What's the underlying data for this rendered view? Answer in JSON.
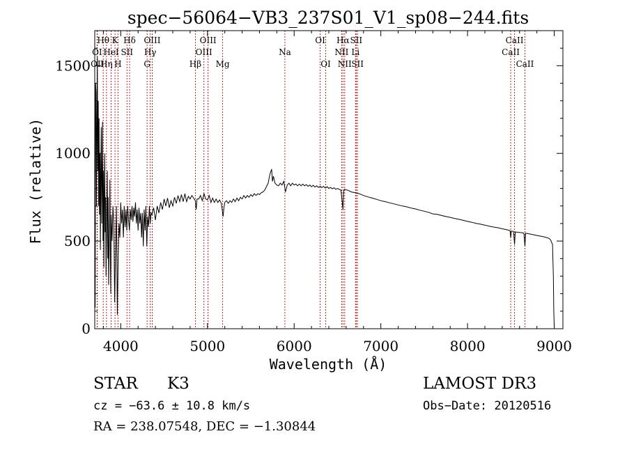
{
  "chart_data": {
    "type": "line",
    "title": "spec−56064−VB3_237S01_V1_sp08−244.fits",
    "xlabel": "Wavelength (Å)",
    "ylabel": "Flux (relative)",
    "xlim": [
      3700,
      9100
    ],
    "ylim": [
      0,
      1700
    ],
    "xticks": [
      4000,
      5000,
      6000,
      7000,
      8000,
      9000
    ],
    "yticks": [
      0,
      500,
      1000,
      1500
    ],
    "xtick_labels": [
      "4000",
      "5000",
      "6000",
      "7000",
      "8000",
      "9000"
    ],
    "ytick_labels": [
      "0",
      "500",
      "1000",
      "1500"
    ],
    "grid": false,
    "line_color": "#000000",
    "marker_color": "#b22222",
    "spectral_lines": [
      {
        "label": "Hθ",
        "wavelength": 3798,
        "row": 1
      },
      {
        "label": "K",
        "wavelength": 3934,
        "row": 1
      },
      {
        "label": "Hδ",
        "wavelength": 4102,
        "row": 1
      },
      {
        "label": "OIII",
        "wavelength": 4363,
        "row": 1
      },
      {
        "label": "OIII",
        "wavelength": 5007,
        "row": 1
      },
      {
        "label": "OI",
        "wavelength": 6300,
        "row": 1
      },
      {
        "label": "Hα",
        "wavelength": 6563,
        "row": 1
      },
      {
        "label": "SII",
        "wavelength": 6716,
        "row": 1
      },
      {
        "label": "CaII",
        "wavelength": 8542,
        "row": 1
      },
      {
        "label": "OI",
        "wavelength": 3727,
        "row": 2
      },
      {
        "label": "HeI",
        "wavelength": 3889,
        "row": 2
      },
      {
        "label": "SII",
        "wavelength": 4072,
        "row": 2
      },
      {
        "label": "Hγ",
        "wavelength": 4340,
        "row": 2
      },
      {
        "label": "OIII",
        "wavelength": 4959,
        "row": 2
      },
      {
        "label": "Na",
        "wavelength": 5893,
        "row": 2
      },
      {
        "label": "NII",
        "wavelength": 6548,
        "row": 2
      },
      {
        "label": "Li",
        "wavelength": 6708,
        "row": 2
      },
      {
        "label": "CaII",
        "wavelength": 8498,
        "row": 2
      },
      {
        "label": "OII",
        "wavelength": 3730,
        "row": 3
      },
      {
        "label": "Hη",
        "wavelength": 3835,
        "row": 3
      },
      {
        "label": "H",
        "wavelength": 3968,
        "row": 3
      },
      {
        "label": "G",
        "wavelength": 4304,
        "row": 3
      },
      {
        "label": "Hβ",
        "wavelength": 4861,
        "row": 3
      },
      {
        "label": "Mg",
        "wavelength": 5175,
        "row": 3
      },
      {
        "label": "OI",
        "wavelength": 6364,
        "row": 3
      },
      {
        "label": "NII",
        "wavelength": 6583,
        "row": 3
      },
      {
        "label": "SII",
        "wavelength": 6731,
        "row": 3
      },
      {
        "label": "CaII",
        "wavelength": 8662,
        "row": 3
      }
    ],
    "series": [
      {
        "name": "flux",
        "points": [
          [
            3700,
            150
          ],
          [
            3705,
            120
          ],
          [
            3710,
            1400
          ],
          [
            3715,
            1350
          ],
          [
            3720,
            700
          ],
          [
            3725,
            1100
          ],
          [
            3730,
            1550
          ],
          [
            3735,
            900
          ],
          [
            3740,
            1300
          ],
          [
            3745,
            700
          ],
          [
            3750,
            1200
          ],
          [
            3755,
            650
          ],
          [
            3760,
            1000
          ],
          [
            3765,
            450
          ],
          [
            3770,
            900
          ],
          [
            3775,
            1150
          ],
          [
            3780,
            600
          ],
          [
            3785,
            850
          ],
          [
            3790,
            1180
          ],
          [
            3795,
            500
          ],
          [
            3800,
            900
          ],
          [
            3805,
            350
          ],
          [
            3810,
            800
          ],
          [
            3815,
            1000
          ],
          [
            3820,
            550
          ],
          [
            3825,
            750
          ],
          [
            3830,
            300
          ],
          [
            3840,
            700
          ],
          [
            3845,
            900
          ],
          [
            3850,
            400
          ],
          [
            3855,
            750
          ],
          [
            3860,
            250
          ],
          [
            3870,
            600
          ],
          [
            3875,
            850
          ],
          [
            3880,
            400
          ],
          [
            3885,
            200
          ],
          [
            3890,
            650
          ],
          [
            3900,
            500
          ],
          [
            3910,
            700
          ],
          [
            3920,
            600
          ],
          [
            3930,
            150
          ],
          [
            3940,
            450
          ],
          [
            3950,
            700
          ],
          [
            3960,
            80
          ],
          [
            3970,
            400
          ],
          [
            3980,
            600
          ],
          [
            3990,
            520
          ],
          [
            4000,
            720
          ],
          [
            4010,
            600
          ],
          [
            4020,
            680
          ],
          [
            4030,
            520
          ],
          [
            4040,
            700
          ],
          [
            4050,
            580
          ],
          [
            4060,
            680
          ],
          [
            4070,
            560
          ],
          [
            4080,
            700
          ],
          [
            4090,
            620
          ],
          [
            4100,
            560
          ],
          [
            4110,
            680
          ],
          [
            4120,
            620
          ],
          [
            4130,
            700
          ],
          [
            4140,
            610
          ],
          [
            4150,
            690
          ],
          [
            4160,
            640
          ],
          [
            4170,
            720
          ],
          [
            4180,
            600
          ],
          [
            4190,
            680
          ],
          [
            4200,
            560
          ],
          [
            4210,
            690
          ],
          [
            4220,
            600
          ],
          [
            4230,
            660
          ],
          [
            4240,
            520
          ],
          [
            4250,
            660
          ],
          [
            4260,
            470
          ],
          [
            4270,
            680
          ],
          [
            4280,
            560
          ],
          [
            4290,
            700
          ],
          [
            4300,
            470
          ],
          [
            4310,
            640
          ],
          [
            4320,
            580
          ],
          [
            4330,
            700
          ],
          [
            4340,
            600
          ],
          [
            4350,
            660
          ],
          [
            4360,
            650
          ],
          [
            4380,
            690
          ],
          [
            4400,
            620
          ],
          [
            4420,
            700
          ],
          [
            4440,
            660
          ],
          [
            4460,
            720
          ],
          [
            4480,
            680
          ],
          [
            4500,
            740
          ],
          [
            4520,
            700
          ],
          [
            4540,
            745
          ],
          [
            4560,
            690
          ],
          [
            4580,
            730
          ],
          [
            4600,
            700
          ],
          [
            4620,
            750
          ],
          [
            4640,
            715
          ],
          [
            4660,
            760
          ],
          [
            4680,
            725
          ],
          [
            4700,
            765
          ],
          [
            4720,
            725
          ],
          [
            4740,
            770
          ],
          [
            4760,
            725
          ],
          [
            4780,
            755
          ],
          [
            4800,
            740
          ],
          [
            4820,
            760
          ],
          [
            4840,
            745
          ],
          [
            4860,
            730
          ],
          [
            4870,
            680
          ],
          [
            4880,
            740
          ],
          [
            4900,
            740
          ],
          [
            4920,
            760
          ],
          [
            4940,
            730
          ],
          [
            4960,
            770
          ],
          [
            4980,
            740
          ],
          [
            5000,
            735
          ],
          [
            5020,
            760
          ],
          [
            5040,
            720
          ],
          [
            5060,
            745
          ],
          [
            5080,
            720
          ],
          [
            5100,
            740
          ],
          [
            5120,
            720
          ],
          [
            5140,
            735
          ],
          [
            5160,
            715
          ],
          [
            5170,
            680
          ],
          [
            5180,
            640
          ],
          [
            5190,
            690
          ],
          [
            5200,
            720
          ],
          [
            5220,
            730
          ],
          [
            5240,
            715
          ],
          [
            5260,
            730
          ],
          [
            5280,
            720
          ],
          [
            5300,
            740
          ],
          [
            5320,
            725
          ],
          [
            5340,
            745
          ],
          [
            5360,
            730
          ],
          [
            5380,
            750
          ],
          [
            5400,
            740
          ],
          [
            5420,
            760
          ],
          [
            5440,
            745
          ],
          [
            5460,
            760
          ],
          [
            5480,
            750
          ],
          [
            5500,
            765
          ],
          [
            5520,
            755
          ],
          [
            5540,
            770
          ],
          [
            5560,
            760
          ],
          [
            5580,
            770
          ],
          [
            5600,
            765
          ],
          [
            5620,
            775
          ],
          [
            5640,
            780
          ],
          [
            5660,
            790
          ],
          [
            5680,
            810
          ],
          [
            5700,
            830
          ],
          [
            5720,
            880
          ],
          [
            5740,
            910
          ],
          [
            5750,
            840
          ],
          [
            5760,
            870
          ],
          [
            5780,
            830
          ],
          [
            5800,
            820
          ],
          [
            5820,
            815
          ],
          [
            5840,
            830
          ],
          [
            5860,
            820
          ],
          [
            5880,
            840
          ],
          [
            5900,
            780
          ],
          [
            5920,
            820
          ],
          [
            5940,
            830
          ],
          [
            5960,
            815
          ],
          [
            5980,
            830
          ],
          [
            6000,
            820
          ],
          [
            6020,
            825
          ],
          [
            6040,
            815
          ],
          [
            6060,
            825
          ],
          [
            6080,
            815
          ],
          [
            6100,
            825
          ],
          [
            6120,
            815
          ],
          [
            6140,
            822
          ],
          [
            6160,
            812
          ],
          [
            6180,
            820
          ],
          [
            6200,
            810
          ],
          [
            6220,
            818
          ],
          [
            6240,
            808
          ],
          [
            6260,
            815
          ],
          [
            6280,
            806
          ],
          [
            6300,
            812
          ],
          [
            6320,
            805
          ],
          [
            6340,
            812
          ],
          [
            6360,
            802
          ],
          [
            6380,
            810
          ],
          [
            6400,
            800
          ],
          [
            6420,
            806
          ],
          [
            6440,
            798
          ],
          [
            6460,
            804
          ],
          [
            6480,
            795
          ],
          [
            6500,
            800
          ],
          [
            6520,
            795
          ],
          [
            6540,
            790
          ],
          [
            6555,
            720
          ],
          [
            6563,
            680
          ],
          [
            6570,
            780
          ],
          [
            6580,
            795
          ],
          [
            6600,
            792
          ],
          [
            6620,
            790
          ],
          [
            6640,
            785
          ],
          [
            6660,
            780
          ],
          [
            6680,
            778
          ],
          [
            6700,
            776
          ],
          [
            6750,
            770
          ],
          [
            6800,
            760
          ],
          [
            6850,
            752
          ],
          [
            6900,
            745
          ],
          [
            6950,
            738
          ],
          [
            7000,
            730
          ],
          [
            7050,
            725
          ],
          [
            7100,
            718
          ],
          [
            7150,
            712
          ],
          [
            7200,
            706
          ],
          [
            7250,
            700
          ],
          [
            7300,
            695
          ],
          [
            7350,
            688
          ],
          [
            7400,
            683
          ],
          [
            7450,
            676
          ],
          [
            7500,
            670
          ],
          [
            7550,
            664
          ],
          [
            7600,
            655
          ],
          [
            7650,
            652
          ],
          [
            7700,
            646
          ],
          [
            7750,
            640
          ],
          [
            7800,
            635
          ],
          [
            7850,
            629
          ],
          [
            7900,
            624
          ],
          [
            7950,
            618
          ],
          [
            8000,
            612
          ],
          [
            8050,
            607
          ],
          [
            8100,
            601
          ],
          [
            8150,
            596
          ],
          [
            8200,
            591
          ],
          [
            8250,
            585
          ],
          [
            8300,
            580
          ],
          [
            8350,
            576
          ],
          [
            8400,
            570
          ],
          [
            8450,
            565
          ],
          [
            8490,
            560
          ],
          [
            8498,
            520
          ],
          [
            8505,
            557
          ],
          [
            8530,
            555
          ],
          [
            8542,
            480
          ],
          [
            8550,
            552
          ],
          [
            8580,
            550
          ],
          [
            8620,
            548
          ],
          [
            8650,
            545
          ],
          [
            8662,
            470
          ],
          [
            8670,
            545
          ],
          [
            8700,
            542
          ],
          [
            8750,
            537
          ],
          [
            8800,
            532
          ],
          [
            8850,
            527
          ],
          [
            8900,
            522
          ],
          [
            8940,
            515
          ],
          [
            8960,
            505
          ],
          [
            8980,
            480
          ],
          [
            8990,
            300
          ],
          [
            8995,
            100
          ],
          [
            9000,
            5
          ]
        ]
      }
    ]
  },
  "info": {
    "object_type": "STAR",
    "subclass": "K3",
    "redshift": "cz = −63.6 ± 10.8 km/s",
    "coords": "RA = 238.07548, DEC =  −1.30844",
    "survey": "LAMOST DR3",
    "obs_date": "Obs−Date: 20120516"
  }
}
